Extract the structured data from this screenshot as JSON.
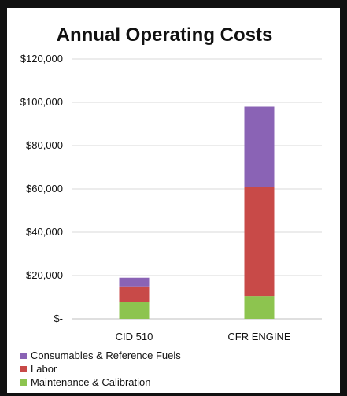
{
  "chart_data": {
    "type": "bar",
    "stacked": true,
    "title": "Annual Operating Costs",
    "categories": [
      "CID 510",
      "CFR ENGINE"
    ],
    "y_ticks": [
      "$-",
      "$20,000",
      "$40,000",
      "$60,000",
      "$80,000",
      "$100,000",
      "$120,000"
    ],
    "ylim": [
      0,
      120000
    ],
    "grid": true,
    "legend_position": "bottom",
    "series": [
      {
        "name": "Maintenance & Calibration",
        "values": [
          8000,
          10500
        ],
        "color": "#8dc44f"
      },
      {
        "name": "Labor",
        "values": [
          7000,
          50500
        ],
        "color": "#c84a48"
      },
      {
        "name": "Consumables & Reference Fuels",
        "values": [
          4000,
          37000
        ],
        "color": "#8a63b5"
      }
    ],
    "legend_order": [
      "Consumables & Reference Fuels",
      "Labor",
      "Maintenance & Calibration"
    ]
  }
}
